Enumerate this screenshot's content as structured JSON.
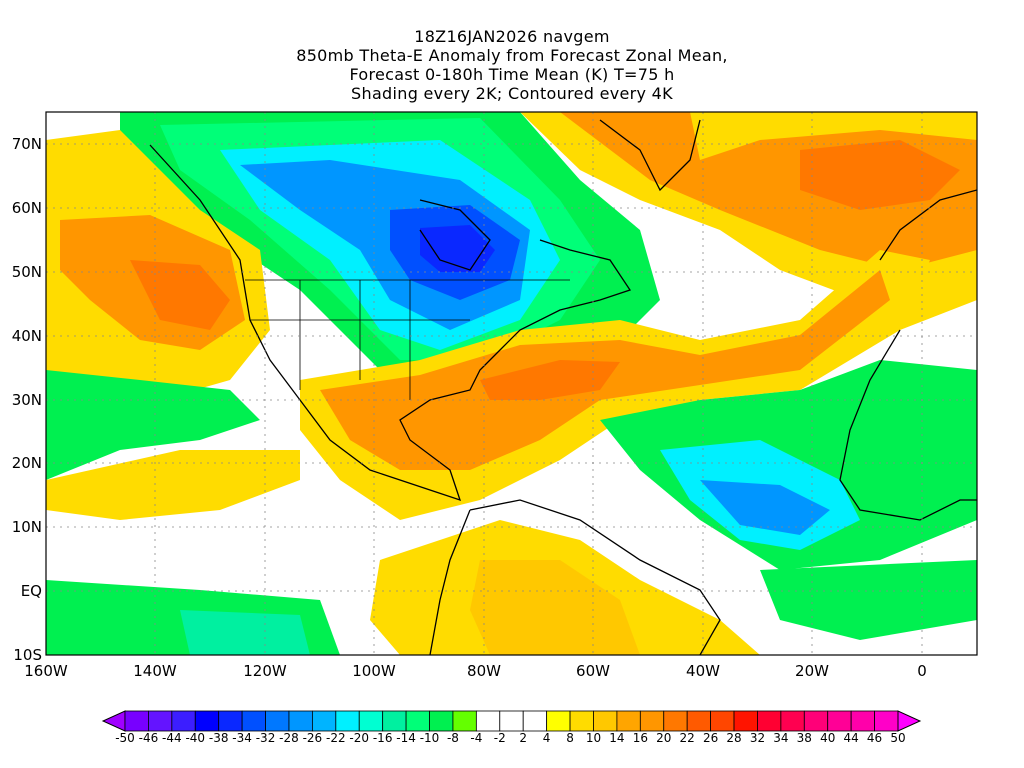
{
  "title": {
    "line1": "18Z16JAN2026 navgem",
    "line2": "850mb Theta-E Anomaly from Forecast Zonal Mean,",
    "line3": "Forecast 0-180h Time Mean (K) T=75 h",
    "line4": "Shading every 2K; Contoured every 4K"
  },
  "axes": {
    "lat_labels": [
      "70N",
      "60N",
      "50N",
      "40N",
      "30N",
      "20N",
      "10N",
      "EQ",
      "10S"
    ],
    "lon_labels": [
      "160W",
      "140W",
      "120W",
      "100W",
      "80W",
      "60W",
      "40W",
      "20W",
      "0"
    ]
  },
  "colorbar": {
    "labels": [
      "-50",
      "-46",
      "-44",
      "-40",
      "-38",
      "-34",
      "-32",
      "-28",
      "-26",
      "-22",
      "-20",
      "-16",
      "-14",
      "-10",
      "-8",
      "-4",
      "-2",
      "2",
      "4",
      "8",
      "10",
      "14",
      "16",
      "20",
      "22",
      "26",
      "28",
      "32",
      "34",
      "38",
      "40",
      "44",
      "46",
      "50"
    ],
    "colors": [
      "#a000ff",
      "#7800ff",
      "#6414ff",
      "#3c1eff",
      "#0000ff",
      "#0a28ff",
      "#0050ff",
      "#0078ff",
      "#0096ff",
      "#00b4ff",
      "#00f0ff",
      "#00ffd2",
      "#00f0a0",
      "#00ff78",
      "#00f050",
      "#64ff00",
      "#ffffff",
      "#ffffff",
      "#ffffff",
      "#ffff00",
      "#ffdc00",
      "#ffc800",
      "#ffa500",
      "#ff9600",
      "#ff7800",
      "#ff5a00",
      "#ff4600",
      "#ff1400",
      "#ff0032",
      "#ff0050",
      "#ff0078",
      "#ff0096",
      "#ff00aa",
      "#ff00c8",
      "#ff00ff"
    ]
  }
}
